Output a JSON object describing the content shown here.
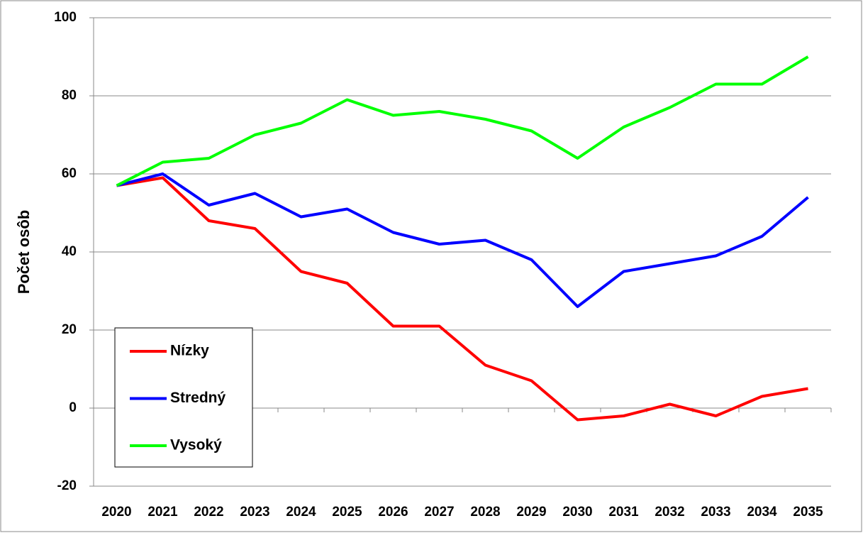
{
  "chart_data": {
    "type": "line",
    "ylabel": "Počet osôb",
    "categories": [
      "2020",
      "2021",
      "2022",
      "2023",
      "2024",
      "2025",
      "2026",
      "2027",
      "2028",
      "2029",
      "2030",
      "2031",
      "2032",
      "2033",
      "2034",
      "2035"
    ],
    "series": [
      {
        "name": "Nízky",
        "color": "#ff0000",
        "values": [
          57,
          59,
          48,
          46,
          35,
          32,
          21,
          21,
          11,
          7,
          -3,
          -2,
          1,
          -2,
          3,
          5
        ]
      },
      {
        "name": "Stredný",
        "color": "#0000ff",
        "values": [
          57,
          60,
          52,
          55,
          49,
          51,
          45,
          42,
          43,
          38,
          26,
          35,
          37,
          39,
          44,
          54
        ]
      },
      {
        "name": "Vysoký",
        "color": "#00ff00",
        "values": [
          57,
          63,
          64,
          70,
          73,
          79,
          75,
          76,
          74,
          71,
          64,
          72,
          77,
          83,
          83,
          90
        ]
      }
    ],
    "ylim": [
      -20,
      100
    ],
    "yticks": [
      -20,
      0,
      20,
      40,
      60,
      80,
      100
    ],
    "grid": true,
    "legend": "lower left"
  }
}
